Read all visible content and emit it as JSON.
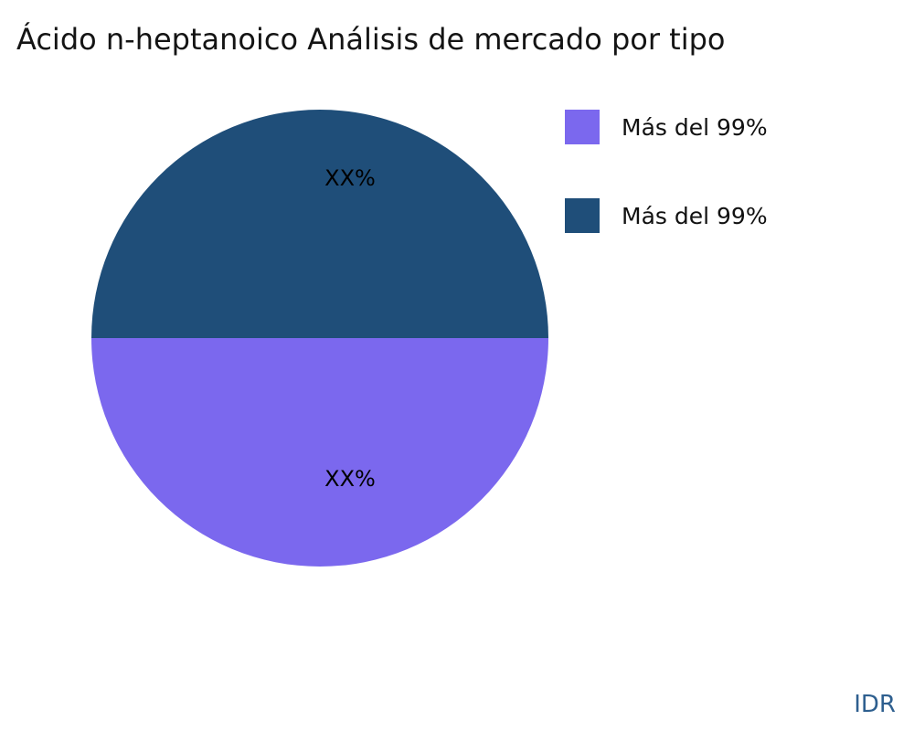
{
  "title": "Ácido n-heptanoico Análisis de mercado por tipo",
  "watermark": "IDR",
  "colors": {
    "purple": "#7B68EE",
    "navy": "#1F4E79",
    "watermark": "#2E5F8F",
    "background": "#FFFFFF",
    "title_text": "#141414"
  },
  "chart_data": {
    "type": "pie",
    "title": "Ácido n-heptanoico Análisis de mercado por tipo",
    "legend_position": "right",
    "start_angle": "3-o'clock, clockwise through bottom",
    "slices": [
      {
        "label": "Más del 99%",
        "value": 50,
        "color": "#7B68EE",
        "data_label": "XX%",
        "position": "bottom-half"
      },
      {
        "label": "Más del 99%",
        "value": 50,
        "color": "#1F4E79",
        "data_label": "XX%",
        "position": "top-half"
      }
    ]
  }
}
